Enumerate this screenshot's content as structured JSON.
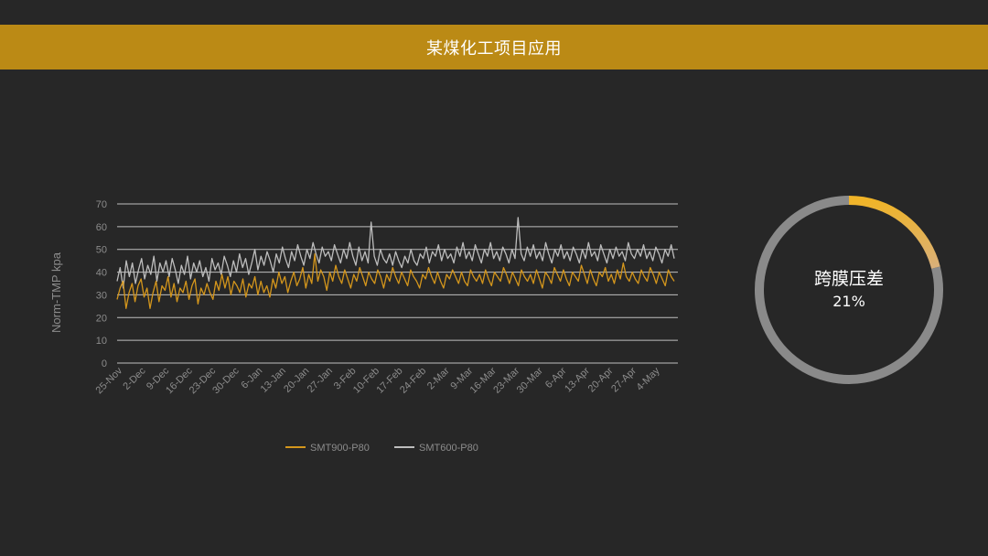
{
  "header": {
    "title": "某煤化工项目应用"
  },
  "chart_data": [
    {
      "type": "line",
      "title": "",
      "xlabel": "",
      "ylabel": "Norm-TMP kpa",
      "ylim": [
        0,
        70
      ],
      "yticks": [
        0,
        10,
        20,
        30,
        40,
        50,
        60,
        70
      ],
      "grid": true,
      "legend": "bottom",
      "x_tick_labels": [
        "25-Nov",
        "2-Dec",
        "9-Dec",
        "16-Dec",
        "23-Dec",
        "30-Dec",
        "6-Jan",
        "13-Jan",
        "20-Jan",
        "27-Jan",
        "3-Feb",
        "10-Feb",
        "17-Feb",
        "24-Feb",
        "2-Mar",
        "9-Mar",
        "16-Mar",
        "23-Mar",
        "30-Mar",
        "6-Apr",
        "13-Apr",
        "20-Apr",
        "27-Apr",
        "4-May"
      ],
      "series": [
        {
          "name": "SMT900-P80",
          "color": "#d4961c",
          "values": [
            28,
            33,
            36,
            24,
            31,
            35,
            27,
            34,
            37,
            29,
            33,
            24,
            31,
            36,
            27,
            34,
            32,
            38,
            29,
            35,
            27,
            33,
            31,
            36,
            28,
            34,
            37,
            26,
            33,
            30,
            35,
            31,
            28,
            36,
            32,
            39,
            33,
            38,
            30,
            36,
            34,
            31,
            37,
            29,
            35,
            33,
            38,
            30,
            36,
            31,
            34,
            29,
            37,
            33,
            40,
            35,
            38,
            31,
            36,
            40,
            34,
            37,
            42,
            33,
            39,
            35,
            48,
            36,
            41,
            38,
            32,
            40,
            36,
            43,
            38,
            35,
            41,
            37,
            33,
            39,
            36,
            42,
            38,
            34,
            40,
            37,
            35,
            41,
            38,
            33,
            39,
            36,
            42,
            38,
            35,
            40,
            37,
            34,
            41,
            38,
            36,
            33,
            39,
            37,
            42,
            38,
            35,
            40,
            36,
            33,
            39,
            37,
            41,
            38,
            35,
            40,
            36,
            34,
            41,
            38,
            36,
            39,
            35,
            41,
            37,
            34,
            40,
            38,
            36,
            42,
            39,
            35,
            40,
            37,
            34,
            41,
            38,
            36,
            39,
            35,
            41,
            37,
            33,
            40,
            38,
            35,
            42,
            39,
            36,
            41,
            37,
            34,
            40,
            38,
            36,
            43,
            39,
            35,
            41,
            37,
            34,
            40,
            38,
            42,
            36,
            39,
            35,
            41,
            37,
            44,
            38,
            36,
            40,
            37,
            35,
            41,
            38,
            36,
            42,
            39,
            35,
            40,
            37,
            34,
            41,
            38,
            36
          ]
        },
        {
          "name": "SMT600-P80",
          "color": "#bdbdbd",
          "values": [
            36,
            42,
            33,
            45,
            38,
            44,
            35,
            41,
            46,
            37,
            43,
            39,
            47,
            36,
            44,
            40,
            45,
            38,
            46,
            41,
            35,
            43,
            39,
            47,
            37,
            44,
            40,
            45,
            38,
            42,
            36,
            46,
            41,
            44,
            39,
            47,
            43,
            38,
            45,
            40,
            48,
            42,
            46,
            39,
            44,
            50,
            41,
            47,
            43,
            49,
            45,
            40,
            48,
            44,
            51,
            46,
            42,
            49,
            45,
            52,
            47,
            43,
            50,
            46,
            53,
            48,
            44,
            51,
            47,
            49,
            45,
            52,
            48,
            44,
            50,
            46,
            53,
            47,
            43,
            51,
            45,
            49,
            44,
            62,
            47,
            43,
            50,
            46,
            44,
            48,
            43,
            49,
            45,
            42,
            47,
            44,
            50,
            45,
            43,
            48,
            46,
            51,
            44,
            49,
            47,
            52,
            45,
            50,
            46,
            48,
            44,
            51,
            47,
            53,
            46,
            49,
            45,
            52,
            48,
            44,
            50,
            47,
            53,
            46,
            49,
            45,
            51,
            48,
            44,
            50,
            46,
            64,
            48,
            45,
            51,
            47,
            52,
            46,
            49,
            45,
            53,
            48,
            44,
            50,
            47,
            52,
            46,
            49,
            45,
            51,
            48,
            44,
            50,
            46,
            53,
            47,
            49,
            45,
            52,
            48,
            44,
            50,
            46,
            51,
            47,
            49,
            45,
            53,
            48,
            46,
            50,
            47,
            52,
            46,
            49,
            45,
            51,
            48,
            44,
            50,
            47,
            52,
            46
          ]
        }
      ]
    },
    {
      "type": "pie",
      "style": "donut",
      "label": "跨膜压差",
      "value_label": "21%",
      "slices": [
        {
          "name": "跨膜压差",
          "value": 21,
          "color_start": "#f0b428",
          "color_end": "#d9b07a"
        },
        {
          "name": "",
          "value": 79,
          "color": "#8a8a8a"
        }
      ]
    }
  ]
}
